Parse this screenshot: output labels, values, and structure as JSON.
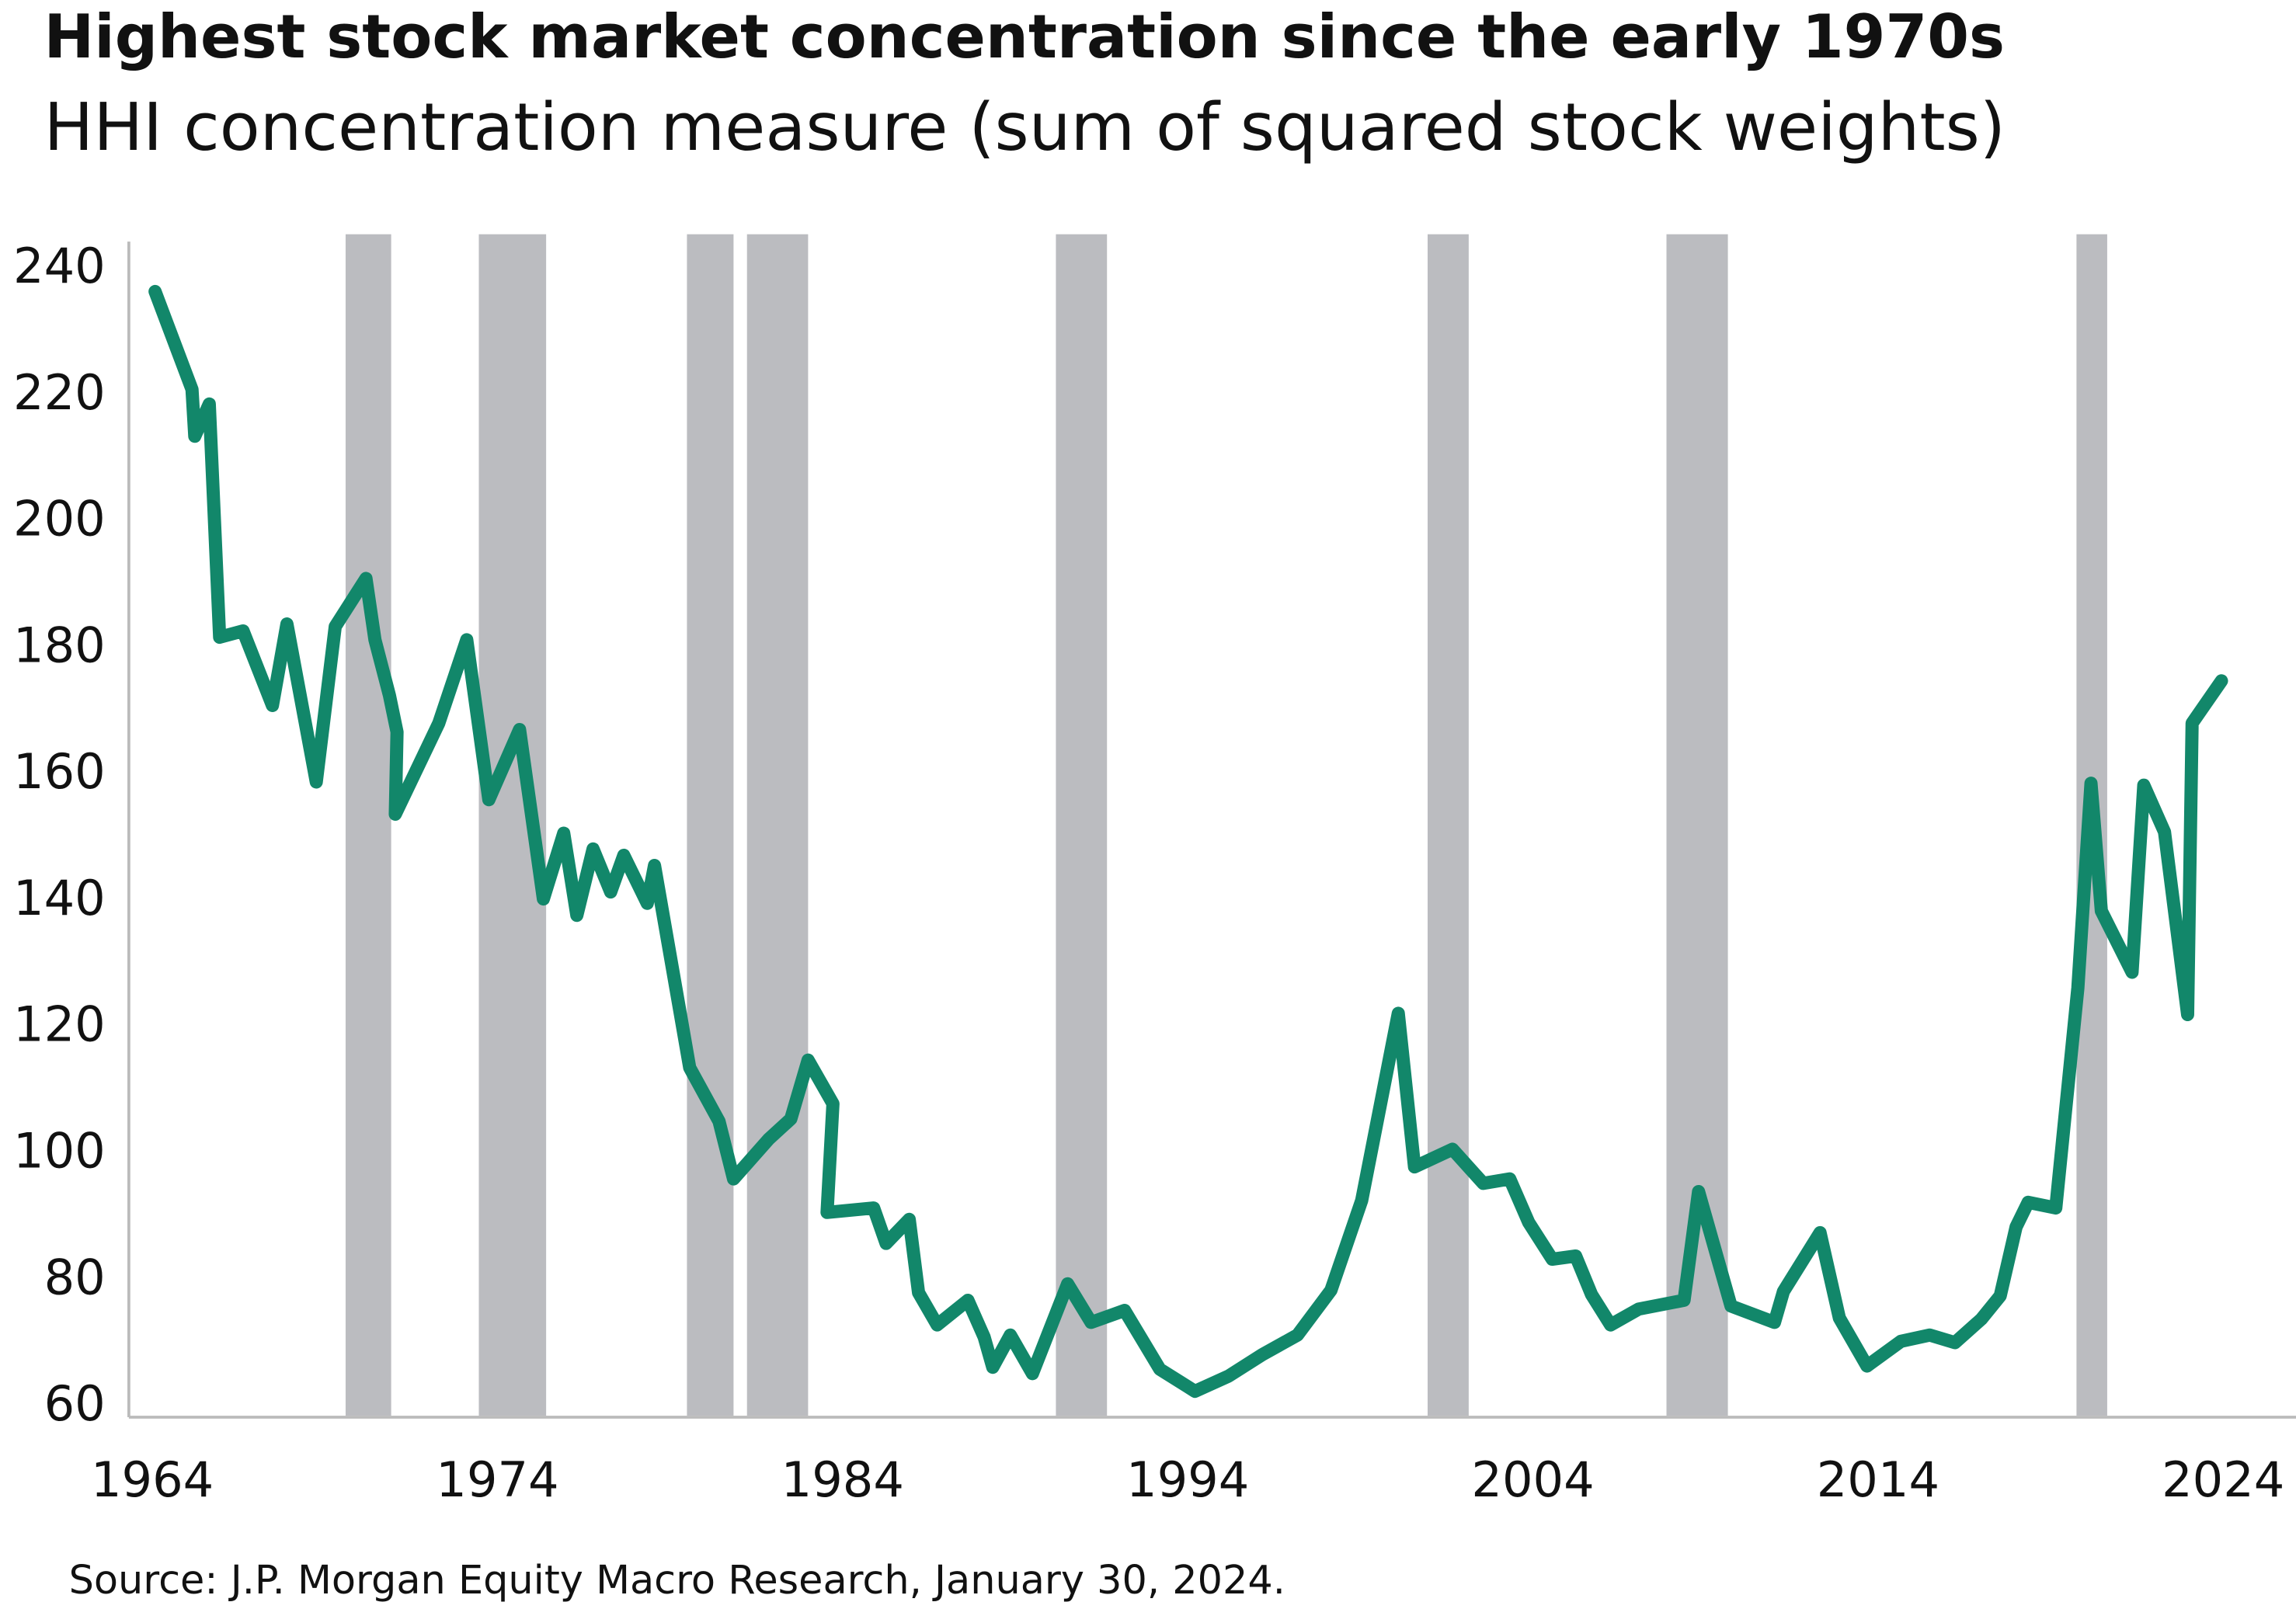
{
  "chart_data": {
    "type": "line",
    "title": "Highest stock market concentration since the early 1970s",
    "subtitle": "HHI concentration measure (sum of squared stock weights)",
    "source": "Source: J.P. Morgan Equity Macro Research, January 30, 2024.",
    "color": "#12876a",
    "band_color": "#bbbcc0",
    "x": [
      1964.08,
      1965.15,
      1965.23,
      1965.65,
      1965.95,
      1966.63,
      1967.48,
      1967.9,
      1968.75,
      1969.3,
      1970.19,
      1970.45,
      1970.87,
      1971.09,
      1971.04,
      1972.3,
      1973.11,
      1973.75,
      1974.64,
      1975.33,
      1975.92,
      1976.3,
      1976.77,
      1977.28,
      1977.66,
      1978.34,
      1978.55,
      1979.57,
      1980.42,
      1980.84,
      1981.86,
      1982.5,
      1983.0,
      1983.72,
      1983.55,
      1984.9,
      1985.26,
      1985.93,
      1986.2,
      1986.74,
      1987.63,
      1988.1,
      1988.35,
      1988.86,
      1989.5,
      1990.52,
      1991.2,
      1992.17,
      1993.19,
      1994.21,
      1995.18,
      1996.16,
      1997.18,
      1998.15,
      1999.04,
      2000.1,
      2000.57,
      2001.67,
      2002.56,
      2003.33,
      2003.88,
      2004.56,
      2005.24,
      2005.7,
      2006.25,
      2007.06,
      2008.38,
      2008.8,
      2009.74,
      2011.0,
      2011.26,
      2012.32,
      2012.88,
      2013.68,
      2014.66,
      2015.5,
      2016.23,
      2016.99,
      2017.54,
      2018.0,
      2018.35,
      2019.15,
      2019.79,
      2020.17,
      2020.47,
      2021.36,
      2021.7,
      2022.3,
      2022.97,
      2023.1,
      2023.95
    ],
    "values": [
      236.5,
      221,
      213.6,
      218.7,
      181.8,
      182.8,
      171,
      183.9,
      158.9,
      183.5,
      191.1,
      181.4,
      172.6,
      166.8,
      153.8,
      168.2,
      181.4,
      156.1,
      167.2,
      140.4,
      150.8,
      137.8,
      148.3,
      141.5,
      147.3,
      139.7,
      145.7,
      113.7,
      105.2,
      96.1,
      102.4,
      105.6,
      114.9,
      108,
      90.8,
      91.5,
      85.9,
      89.7,
      78.1,
      73,
      76.9,
      71.1,
      66.3,
      71.4,
      65.3,
      79.5,
      73.4,
      75.3,
      66,
      62.5,
      64.9,
      68.3,
      71.4,
      78.5,
      92.7,
      122.3,
      98,
      100.8,
      95.4,
      96.1,
      89.2,
      83.4,
      83.9,
      77.8,
      73,
      75.5,
      76.9,
      94.1,
      76,
      73.4,
      78.3,
      87.6,
      74.1,
      66.5,
      70.4,
      71.4,
      70.2,
      73.9,
      77.6,
      88.5,
      92.4,
      91.5,
      126.3,
      158.7,
      138.5,
      128.8,
      158.4,
      151,
      122.1,
      168.2,
      174.9
    ],
    "shaded_periods": [
      [
        1969.6,
        1970.92
      ],
      [
        1973.46,
        1975.41
      ],
      [
        1979.49,
        1980.84
      ],
      [
        1981.23,
        1983.0
      ],
      [
        1990.18,
        1991.66
      ],
      [
        2000.95,
        2002.14
      ],
      [
        2007.87,
        2009.65
      ],
      [
        2019.75,
        2020.64
      ]
    ],
    "xlim": [
      1963.32,
      2026.11
    ],
    "ylim": [
      58.4,
      244.4
    ],
    "xticks": [
      1964,
      1974,
      1984,
      1994,
      2004,
      2014,
      2024
    ],
    "yticks": [
      60,
      80,
      100,
      120,
      140,
      160,
      180,
      200,
      220,
      240
    ]
  }
}
